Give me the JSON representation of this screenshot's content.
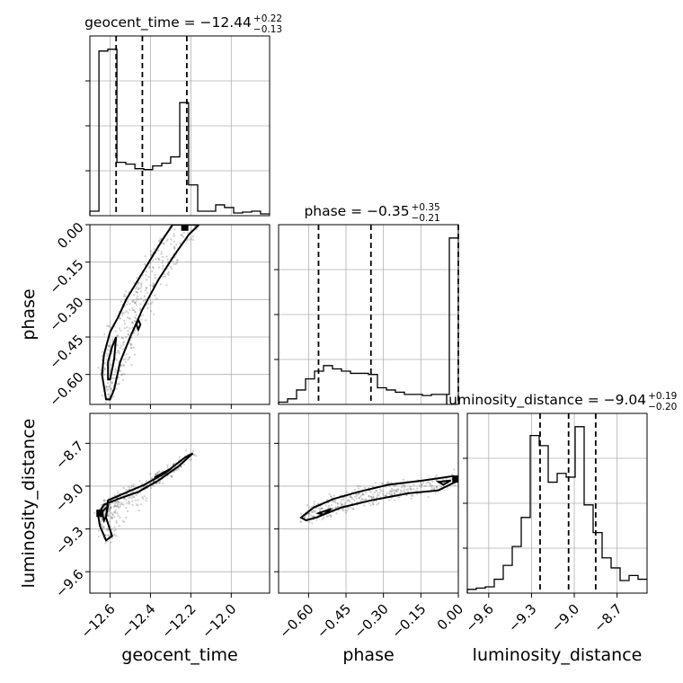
{
  "chart_data": {
    "type": "corner",
    "parameters": [
      "geocent_time",
      "phase",
      "luminosity_distance"
    ],
    "titles": [
      {
        "param": "geocent_time",
        "label": "geocent_time",
        "median": "−12.44",
        "plus": "+0.22",
        "minus": "−0.13"
      },
      {
        "param": "phase",
        "label": "phase",
        "median": "−0.35",
        "plus": "+0.35",
        "minus": "−0.21"
      },
      {
        "param": "luminosity_distance",
        "label": "luminosity_distance",
        "median": "−9.04",
        "plus": "+0.19",
        "minus": "−0.20"
      }
    ],
    "axes": {
      "geocent_time": {
        "label": "geocent_time",
        "range": [
          -12.7,
          -11.81
        ],
        "ticks": [
          -12.6,
          -12.4,
          -12.2,
          -12.0
        ],
        "tick_labels": [
          "−12.6",
          "−12.4",
          "−12.2",
          "−12.0"
        ]
      },
      "phase": {
        "label": "phase",
        "range": [
          -0.72,
          0.0
        ],
        "ticks": [
          -0.6,
          -0.45,
          -0.3,
          -0.15,
          0.0
        ],
        "tick_labels": [
          "−0.60",
          "−0.45",
          "−0.30",
          "−0.15",
          "0.00"
        ]
      },
      "luminosity_distance": {
        "label": "luminosity_distance",
        "range": [
          -9.75,
          -8.49
        ],
        "ticks": [
          -9.6,
          -9.3,
          -9.0,
          -8.7
        ],
        "tick_labels": [
          "−9.6",
          "−9.3",
          "−9.0",
          "−8.7"
        ]
      }
    },
    "histograms": {
      "geocent_time": {
        "edges": [
          -12.7,
          -12.655,
          -12.611,
          -12.566,
          -12.522,
          -12.477,
          -12.433,
          -12.389,
          -12.344,
          -12.3,
          -12.255,
          -12.211,
          -12.166,
          -12.122,
          -12.077,
          -12.033,
          -11.988,
          -11.944,
          -11.899,
          -11.855,
          -11.81
        ],
        "counts": [
          5,
          182,
          184,
          59,
          57,
          52,
          51,
          55,
          58,
          65,
          125,
          34,
          5,
          5,
          12,
          9,
          3,
          4,
          5,
          2
        ],
        "quantiles": [
          -12.57,
          -12.44,
          -12.22
        ]
      },
      "phase": {
        "edges": [
          -0.72,
          -0.684,
          -0.648,
          -0.612,
          -0.576,
          -0.54,
          -0.504,
          -0.468,
          -0.432,
          -0.396,
          -0.36,
          -0.324,
          -0.288,
          -0.252,
          -0.216,
          -0.18,
          -0.144,
          -0.108,
          -0.072,
          -0.036,
          0.0
        ],
        "counts": [
          2,
          5,
          13,
          23,
          30,
          35,
          32,
          30,
          28,
          28,
          27,
          15,
          13,
          11,
          9,
          9,
          8,
          9,
          9,
          150
        ],
        "quantiles": [
          -0.56,
          -0.35,
          0.0
        ]
      },
      "luminosity_distance": {
        "edges": [
          -9.75,
          -9.687,
          -9.624,
          -9.561,
          -9.498,
          -9.435,
          -9.372,
          -9.309,
          -9.246,
          -9.183,
          -9.12,
          -9.057,
          -8.994,
          -8.931,
          -8.868,
          -8.805,
          -8.742,
          -8.679,
          -8.616,
          -8.553,
          -8.49
        ],
        "counts": [
          3,
          4,
          5,
          11,
          22,
          37,
          60,
          125,
          117,
          88,
          95,
          92,
          132,
          70,
          48,
          28,
          20,
          10,
          14,
          11
        ],
        "quantiles": [
          -9.24,
          -9.04,
          -8.85
        ]
      }
    },
    "contours_2d": [
      {
        "x": "geocent_time",
        "y": "phase",
        "levels": [
          [
            [
              -12.62,
              -0.7
            ],
            [
              -12.64,
              -0.6
            ],
            [
              -12.63,
              -0.52
            ],
            [
              -12.6,
              -0.43
            ],
            [
              -12.56,
              -0.37
            ],
            [
              -12.52,
              -0.3
            ],
            [
              -12.46,
              -0.22
            ],
            [
              -12.4,
              -0.14
            ],
            [
              -12.34,
              -0.06
            ],
            [
              -12.29,
              0.0
            ],
            [
              -12.16,
              0.0
            ],
            [
              -12.21,
              -0.04
            ],
            [
              -12.28,
              -0.12
            ],
            [
              -12.36,
              -0.22
            ],
            [
              -12.44,
              -0.34
            ],
            [
              -12.5,
              -0.45
            ],
            [
              -12.55,
              -0.55
            ],
            [
              -12.58,
              -0.66
            ],
            [
              -12.6,
              -0.7
            ]
          ],
          [
            [
              -12.61,
              -0.62
            ],
            [
              -12.61,
              -0.55
            ],
            [
              -12.59,
              -0.49
            ],
            [
              -12.57,
              -0.45
            ],
            [
              -12.58,
              -0.54
            ],
            [
              -12.6,
              -0.62
            ]
          ],
          [
            [
              -12.47,
              -0.4
            ],
            [
              -12.46,
              -0.38
            ],
            [
              -12.45,
              -0.4
            ],
            [
              -12.46,
              -0.42
            ]
          ]
        ],
        "core": [
          [
            -12.23,
            -0.01
          ]
        ]
      },
      {
        "x": "geocent_time",
        "y": "luminosity_distance",
        "levels": [
          [
            [
              -12.66,
              -9.2
            ],
            [
              -12.63,
              -9.13
            ],
            [
              -12.56,
              -9.09
            ],
            [
              -12.46,
              -9.04
            ],
            [
              -12.36,
              -8.96
            ],
            [
              -12.26,
              -8.86
            ],
            [
              -12.19,
              -8.77
            ],
            [
              -12.23,
              -8.8
            ],
            [
              -12.33,
              -8.91
            ],
            [
              -12.43,
              -8.99
            ],
            [
              -12.53,
              -9.05
            ],
            [
              -12.61,
              -9.1
            ],
            [
              -12.62,
              -9.22
            ],
            [
              -12.59,
              -9.35
            ],
            [
              -12.62,
              -9.38
            ],
            [
              -12.65,
              -9.28
            ]
          ],
          [
            [
              -12.64,
              -9.18
            ],
            [
              -12.61,
              -9.14
            ],
            [
              -12.62,
              -9.21
            ],
            [
              -12.63,
              -9.24
            ]
          ],
          [
            [
              -12.38,
              -8.94
            ],
            [
              -12.33,
              -8.9
            ],
            [
              -12.3,
              -8.88
            ],
            [
              -12.34,
              -8.92
            ]
          ]
        ],
        "core": [
          [
            -12.65,
            -9.19
          ]
        ]
      },
      {
        "x": "phase",
        "y": "luminosity_distance",
        "levels": [
          [
            [
              -0.63,
              -9.22
            ],
            [
              -0.58,
              -9.15
            ],
            [
              -0.5,
              -9.09
            ],
            [
              -0.4,
              -9.04
            ],
            [
              -0.28,
              -8.99
            ],
            [
              -0.14,
              -8.96
            ],
            [
              -0.02,
              -8.93
            ],
            [
              0.0,
              -8.96
            ],
            [
              -0.08,
              -9.03
            ],
            [
              -0.2,
              -9.05
            ],
            [
              -0.35,
              -9.1
            ],
            [
              -0.47,
              -9.15
            ],
            [
              -0.57,
              -9.22
            ],
            [
              -0.61,
              -9.24
            ]
          ],
          [
            [
              -0.56,
              -9.19
            ],
            [
              -0.51,
              -9.16
            ],
            [
              -0.54,
              -9.2
            ]
          ],
          [
            [
              -0.08,
              -8.97
            ],
            [
              -0.03,
              -8.96
            ],
            [
              -0.06,
              -8.99
            ]
          ]
        ],
        "core": [
          [
            -0.01,
            -8.95
          ]
        ]
      }
    ]
  }
}
